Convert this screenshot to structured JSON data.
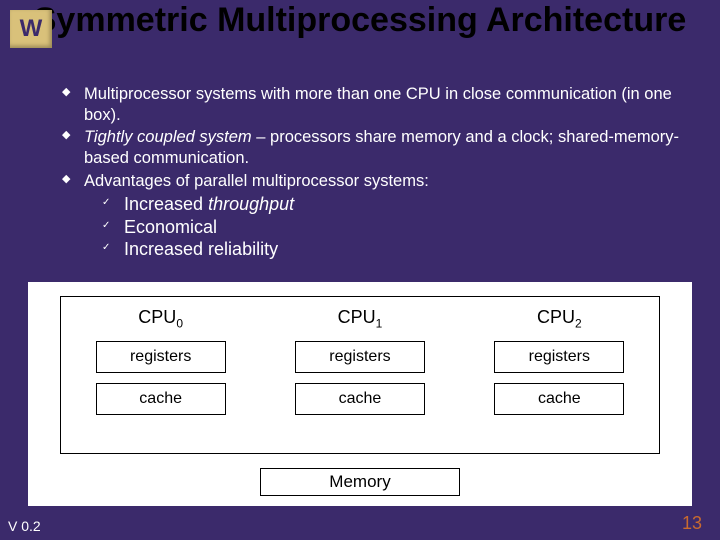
{
  "logo": {
    "letter": "W",
    "bg": "#d9c17a",
    "fg": "#3b2a6b"
  },
  "slide_bg": "#3b2a6b",
  "title": "Symmetric Multiprocessing Architecture",
  "bullets": {
    "b1": "Multiprocessor systems with more than one CPU in close communication (in one box).",
    "b2_pre": "Tightly coupled system",
    "b2_post": " – processors share memory and a clock; shared-memory-based communication.",
    "b3": "Advantages of parallel multiprocessor systems:",
    "s1_pre": "Increased ",
    "s1_it": "throughput",
    "s2": "Economical",
    "s3": "Increased reliability"
  },
  "diagram": {
    "cpus": [
      {
        "label": "CPU",
        "sub": "0",
        "reg": "registers",
        "cache": "cache"
      },
      {
        "label": "CPU",
        "sub": "1",
        "reg": "registers",
        "cache": "cache"
      },
      {
        "label": "CPU",
        "sub": "2",
        "reg": "registers",
        "cache": "cache"
      }
    ],
    "memory": "Memory",
    "box_border": "#000000",
    "bg": "#ffffff"
  },
  "footer": {
    "version": "V 0.2",
    "page": "13",
    "page_color": "#c96a2f"
  }
}
